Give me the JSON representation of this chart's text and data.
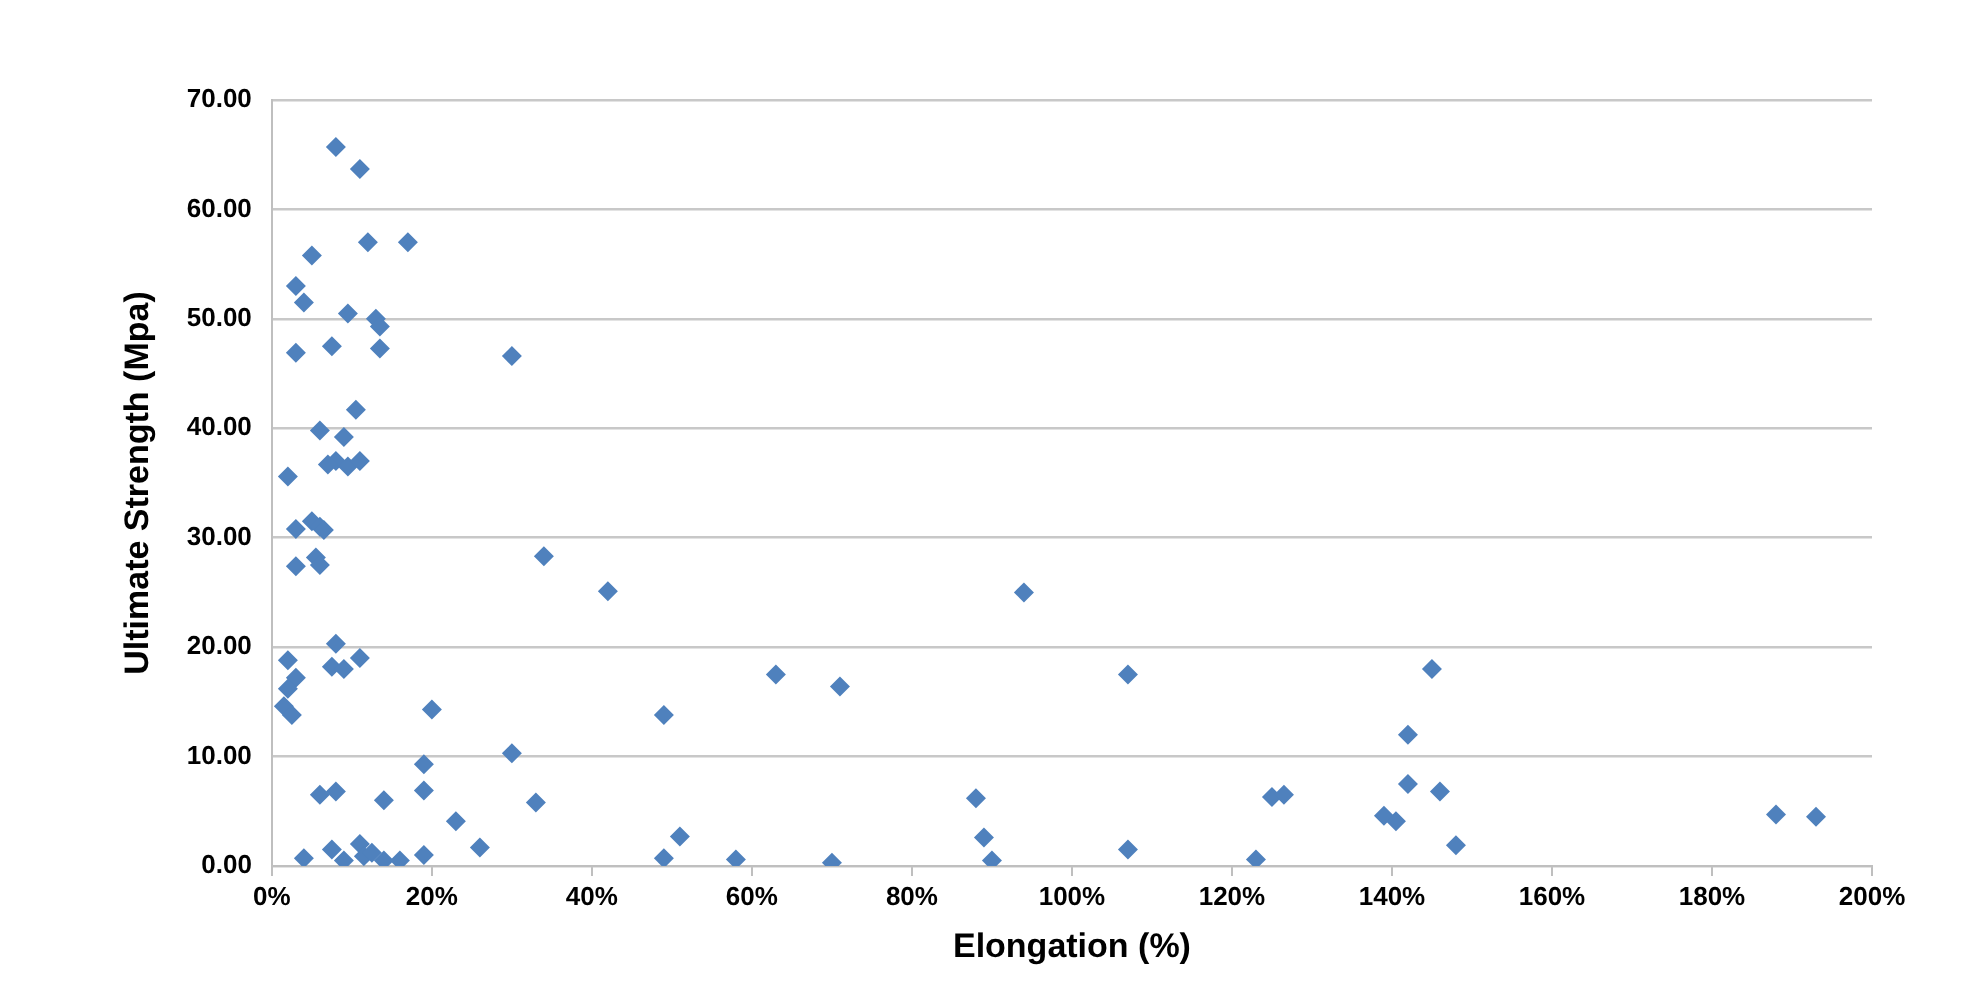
{
  "chart_data": {
    "type": "scatter",
    "xlabel": "Elongation (%)",
    "ylabel": "Ultimate Strength (Mpa)",
    "xlim": [
      0,
      200
    ],
    "xticks": [
      {
        "value": 0,
        "label": "0%"
      },
      {
        "value": 20,
        "label": "20%"
      },
      {
        "value": 40,
        "label": "40%"
      },
      {
        "value": 60,
        "label": "60%"
      },
      {
        "value": 80,
        "label": "80%"
      },
      {
        "value": 100,
        "label": "100%"
      },
      {
        "value": 120,
        "label": "120%"
      },
      {
        "value": 140,
        "label": "140%"
      },
      {
        "value": 160,
        "label": "160%"
      },
      {
        "value": 180,
        "label": "180%"
      },
      {
        "value": 200,
        "label": "200%"
      }
    ],
    "ylim": [
      0,
      70
    ],
    "yticks": [
      {
        "value": 0,
        "label": "0.00"
      },
      {
        "value": 10,
        "label": "10.00"
      },
      {
        "value": 20,
        "label": "20.00"
      },
      {
        "value": 30,
        "label": "30.00"
      },
      {
        "value": 40,
        "label": "40.00"
      },
      {
        "value": 50,
        "label": "50.00"
      },
      {
        "value": 60,
        "label": "60.00"
      },
      {
        "value": 70,
        "label": "70.00"
      }
    ],
    "grid": "y",
    "marker": "diamond",
    "legend": false,
    "series": [
      {
        "color": "#4f81bd",
        "x": [
          8,
          11,
          5,
          12,
          17,
          3,
          4,
          13,
          13.5,
          9.5,
          13.5,
          7.5,
          3,
          30,
          10.5,
          6,
          9,
          8,
          7,
          9.5,
          11,
          2,
          5,
          6,
          6.5,
          3,
          5.5,
          6,
          3,
          34,
          42,
          94,
          2,
          8,
          11,
          7.5,
          9,
          3,
          2,
          1.5,
          2.5,
          20,
          49,
          63,
          71,
          107,
          145,
          142,
          30,
          19,
          19,
          8,
          6,
          14,
          23,
          33,
          26,
          4,
          7.5,
          9,
          11,
          11.5,
          12.5,
          14,
          16,
          19,
          49,
          51,
          58,
          70,
          88,
          89,
          90,
          107,
          123,
          125,
          126.5,
          139,
          140.5,
          142,
          146,
          148,
          188,
          193
        ],
        "values": [
          65.7,
          63.7,
          55.8,
          57,
          57,
          53,
          51.5,
          50,
          49.3,
          50.5,
          47.3,
          47.5,
          46.9,
          46.6,
          41.7,
          39.8,
          39.2,
          37,
          36.7,
          36.5,
          37,
          35.6,
          31.5,
          31,
          30.7,
          30.8,
          28.2,
          27.5,
          27.4,
          28.3,
          25.1,
          25,
          18.8,
          20.3,
          19,
          18.2,
          18,
          17.2,
          16.2,
          14.6,
          13.8,
          14.3,
          13.8,
          17.5,
          16.4,
          17.5,
          18,
          12,
          10.3,
          9.3,
          6.9,
          6.8,
          6.5,
          6,
          4.1,
          5.8,
          1.7,
          0.7,
          1.5,
          0.5,
          2,
          0.9,
          1.2,
          0.5,
          0.5,
          1,
          0.7,
          2.7,
          0.6,
          0.3,
          6.2,
          2.6,
          0.5,
          1.5,
          0.6,
          6.3,
          6.5,
          4.6,
          4.1,
          7.5,
          6.8,
          1.9,
          4.7,
          4.5
        ]
      }
    ]
  }
}
